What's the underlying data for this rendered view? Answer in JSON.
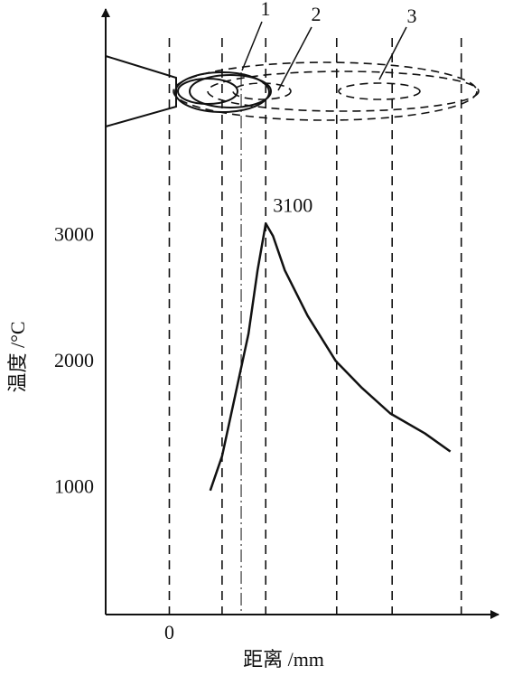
{
  "chart_data": {
    "type": "line",
    "x_label": "距离 /mm",
    "y_label": "温度 /°C",
    "x": [
      4.5,
      5.8,
      7.2,
      8.7,
      9.7,
      10.6,
      11.4,
      12.7,
      15.2,
      18.3,
      21.2,
      24.3,
      28.1,
      30.9
    ],
    "values": [
      983,
      1256,
      1723,
      2225,
      2728,
      3100,
      3001,
      2728,
      2369,
      2010,
      1795,
      1594,
      1436,
      1292
    ],
    "color": "#111111",
    "peak_index": 5,
    "xlim": [
      -7,
      36
    ],
    "ylim": [
      0,
      4800
    ],
    "xticks": [
      0
    ],
    "yticks": [
      1000,
      2000,
      3000
    ],
    "reference_lines": [
      0,
      5.8,
      10.6,
      18.4,
      24.5,
      32.1
    ],
    "dashdot_lines": [
      7.9
    ],
    "annotations": [
      "1",
      "2",
      "3"
    ]
  }
}
